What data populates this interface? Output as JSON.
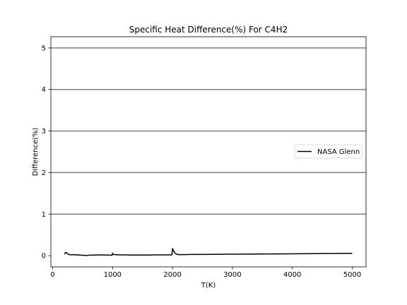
{
  "chart_data": {
    "type": "line",
    "title": "Specific Heat Difference(%) For C4H2",
    "xlabel": "T(K)",
    "ylabel": "Difference(%)",
    "xlim": [
      -30,
      5230
    ],
    "ylim": [
      -0.27,
      5.27
    ],
    "xticks": [
      0,
      1000,
      2000,
      3000,
      4000,
      5000
    ],
    "yticks": [
      0,
      1,
      2,
      3,
      4,
      5
    ],
    "horizontal_lines": [
      1,
      2,
      3,
      4,
      5
    ],
    "grid": false,
    "legend": {
      "position": "center-right",
      "entries": [
        "NASA Glenn"
      ]
    },
    "series": [
      {
        "name": "NASA Glenn",
        "color": "#000000",
        "x": [
          200,
          210,
          220,
          240,
          270,
          300,
          350,
          400,
          450,
          500,
          550,
          600,
          700,
          800,
          900,
          990,
          1000,
          1005,
          1020,
          1050,
          1100,
          1200,
          1300,
          1400,
          1500,
          1600,
          1700,
          1800,
          1900,
          1990,
          2000,
          2010,
          2030,
          2060,
          2100,
          2150,
          2200,
          2300,
          2500,
          3000,
          3500,
          4000,
          4500,
          5000
        ],
        "y": [
          0.03,
          0.07,
          0.08,
          0.06,
          0.03,
          0.02,
          0.025,
          0.02,
          0.015,
          0.01,
          0.005,
          0.01,
          0.015,
          0.02,
          0.015,
          0.01,
          0.06,
          0.04,
          0.025,
          0.025,
          0.02,
          0.02,
          0.015,
          0.015,
          0.015,
          0.015,
          0.018,
          0.02,
          0.02,
          0.02,
          0.17,
          0.14,
          0.08,
          0.04,
          0.025,
          0.025,
          0.025,
          0.03,
          0.03,
          0.035,
          0.04,
          0.045,
          0.05,
          0.055
        ]
      }
    ]
  }
}
